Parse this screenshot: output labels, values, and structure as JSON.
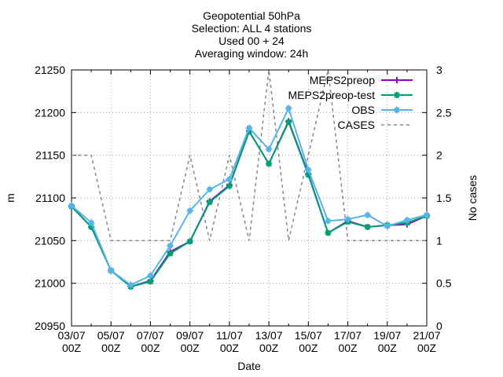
{
  "titles": {
    "line1": "Geopotential 50hPa",
    "line2": "Selection: ALL      4 stations",
    "line3": "Used 00 + 24",
    "line4": "Averaging window: 24h"
  },
  "chart_data": {
    "type": "line",
    "xlabel": "Date",
    "ylabel": "m",
    "y2label": "No cases",
    "ylim": [
      20950,
      21250
    ],
    "y2lim": [
      0,
      3
    ],
    "yticks": [
      "20950",
      "21000",
      "21050",
      "21100",
      "21150",
      "21200",
      "21250"
    ],
    "y2ticks": [
      "0",
      "0.5",
      "1",
      "1.5",
      "2",
      "2.5",
      "3"
    ],
    "xtick_labels": [
      {
        "day": "03/07",
        "hour": "00Z"
      },
      {
        "day": "05/07",
        "hour": "00Z"
      },
      {
        "day": "07/07",
        "hour": "00Z"
      },
      {
        "day": "09/07",
        "hour": "00Z"
      },
      {
        "day": "11/07",
        "hour": "00Z"
      },
      {
        "day": "13/07",
        "hour": "00Z"
      },
      {
        "day": "15/07",
        "hour": "00Z"
      },
      {
        "day": "17/07",
        "hour": "00Z"
      },
      {
        "day": "19/07",
        "hour": "00Z"
      },
      {
        "day": "21/07",
        "hour": "00Z"
      }
    ],
    "x": [
      "03/07",
      "04/07",
      "05/07",
      "06/07",
      "07/07",
      "08/07",
      "09/07",
      "10/07",
      "11/07",
      "12/07",
      "13/07",
      "14/07",
      "15/07",
      "16/07",
      "17/07",
      "18/07",
      "19/07",
      "20/07",
      "21/07"
    ],
    "grid": true,
    "legend_position": "top-right",
    "series": [
      {
        "name": "MEPS2preop",
        "color": "#8b00c8",
        "marker": "plus",
        "axis": "y",
        "values": [
          21090,
          21066,
          21015,
          20996,
          21003,
          21037,
          21049,
          21096,
          21115,
          21178,
          21140,
          21190,
          21128,
          21059,
          21073,
          21066,
          21068,
          21069,
          21079
        ]
      },
      {
        "name": "MEPS2preop-test",
        "color": "#009e73",
        "marker": "star",
        "axis": "y",
        "values": [
          21090,
          21066,
          21015,
          20996,
          21002,
          21035,
          21049,
          21095,
          21114,
          21178,
          21140,
          21189,
          21127,
          21059,
          21072,
          21066,
          21068,
          21071,
          21079
        ]
      },
      {
        "name": "OBS",
        "color": "#56b4e9",
        "marker": "box",
        "axis": "y",
        "values": [
          21091,
          21071,
          21015,
          20998,
          21009,
          21044,
          21085,
          21110,
          21122,
          21182,
          21157,
          21205,
          21133,
          21073,
          21075,
          21080,
          21067,
          21074,
          21080
        ]
      },
      {
        "name": "CASES",
        "color": "#888888",
        "marker": "none",
        "dashed": true,
        "axis": "y2",
        "values": [
          2,
          2,
          1,
          1,
          1,
          1,
          2,
          1,
          2,
          1,
          3,
          1,
          2,
          3,
          1,
          1,
          1,
          1,
          1
        ]
      }
    ]
  }
}
